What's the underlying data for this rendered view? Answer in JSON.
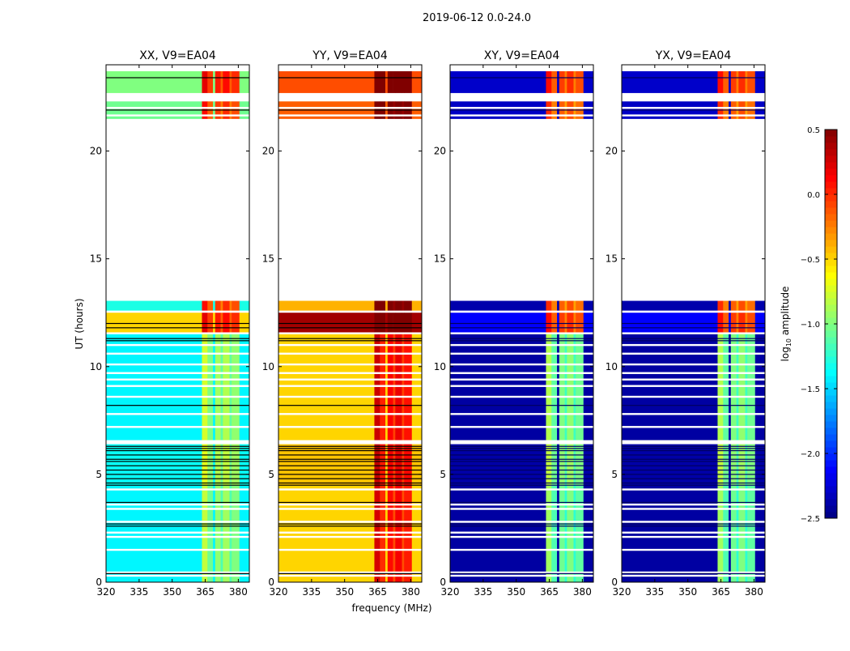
{
  "chart_data": {
    "type": "heatmap",
    "suptitle": "2019-06-12 0.0-24.0",
    "xlabel": "frequency (MHz)",
    "ylabel": "UT (hours)",
    "xlim": [
      320,
      385
    ],
    "ylim": [
      0,
      24
    ],
    "xticks": [
      "320",
      "335",
      "350",
      "365",
      "380"
    ],
    "xtick_values": [
      320,
      335,
      350,
      365,
      380
    ],
    "yticks": [
      "0",
      "5",
      "10",
      "15",
      "20"
    ],
    "ytick_values": [
      0,
      5,
      10,
      15,
      20
    ],
    "colorbar": {
      "label_main": "log",
      "label_sub": "10",
      "label_tail": " amplitude",
      "range": [
        -2.5,
        0.5
      ],
      "ticks": [
        "0.5",
        "0.0",
        "−0.5",
        "−1.0",
        "−1.5",
        "−2.0",
        "−2.5"
      ],
      "tick_values": [
        0.5,
        0.0,
        -0.5,
        -1.0,
        -1.5,
        -2.0,
        -2.5
      ],
      "colormap": "jet"
    },
    "freq_bands": [
      {
        "range": [
          320,
          363.5
        ],
        "inband": false
      },
      {
        "range": [
          363.5,
          366
        ],
        "inband": true,
        "extra": 0.25
      },
      {
        "range": [
          366,
          368.5
        ],
        "inband": true,
        "extra": 0.0
      },
      {
        "range": [
          368.5,
          369.5
        ],
        "inband": false
      },
      {
        "range": [
          369.5,
          372
        ],
        "inband": true,
        "extra": 0.1
      },
      {
        "range": [
          372,
          373
        ],
        "inband": true,
        "extra": -0.1
      },
      {
        "range": [
          373,
          376
        ],
        "inband": true,
        "extra": 0.15
      },
      {
        "range": [
          376,
          377
        ],
        "inband": true,
        "extra": -0.1
      },
      {
        "range": [
          377,
          380.5
        ],
        "inband": true,
        "extra": 0.05
      },
      {
        "range": [
          380.5,
          385
        ],
        "inband": false
      }
    ],
    "time_segments": [
      {
        "range": [
          0,
          4.5
        ],
        "base_boost": 0,
        "band_boost": 0
      },
      {
        "range": [
          4.5,
          6.4
        ],
        "base_boost": 0.05,
        "band_boost": 0.1
      },
      {
        "range": [
          6.6,
          11.5
        ],
        "base_boost": 0,
        "band_boost": 0.05
      },
      {
        "range": [
          11.6,
          12.5
        ],
        "base_boost": 0.9,
        "band_boost": 1.0
      },
      {
        "range": [
          12.6,
          13.05
        ],
        "base_boost": 0.1,
        "band_boost": 0.9
      },
      {
        "range": [
          21.5,
          22.3
        ],
        "base_boost": 0.35,
        "band_boost": 0.9
      },
      {
        "range": [
          22.7,
          23.7
        ],
        "base_boost": 0.4,
        "band_boost": 1.0
      }
    ],
    "flagged_rows": [
      0.3,
      0.45,
      1.5,
      2.1,
      2.3,
      2.8,
      3.4,
      3.6,
      4.3,
      6.5,
      7.2,
      7.8,
      8.6,
      9.1,
      9.4,
      9.7,
      10.1,
      10.6,
      11.0,
      12.55,
      21.65,
      22.0
    ],
    "dark_rows": [
      0.4,
      2.6,
      2.7,
      3.7,
      4.5,
      4.6,
      4.8,
      5.0,
      5.2,
      5.4,
      5.6,
      5.7,
      5.9,
      6.1,
      6.2,
      6.3,
      8.2,
      11.2,
      11.3,
      11.8,
      12.0,
      21.9,
      23.4
    ],
    "series": [
      {
        "name": "XX, V9=EA04",
        "base": -1.4,
        "inband": -1.05
      },
      {
        "name": "YY, V9=EA04",
        "base": -0.5,
        "inband": 0.0
      },
      {
        "name": "XY, V9=EA04",
        "base": -2.4,
        "inband": -1.15
      },
      {
        "name": "YX, V9=EA04",
        "base": -2.4,
        "inband": -1.15
      }
    ]
  }
}
